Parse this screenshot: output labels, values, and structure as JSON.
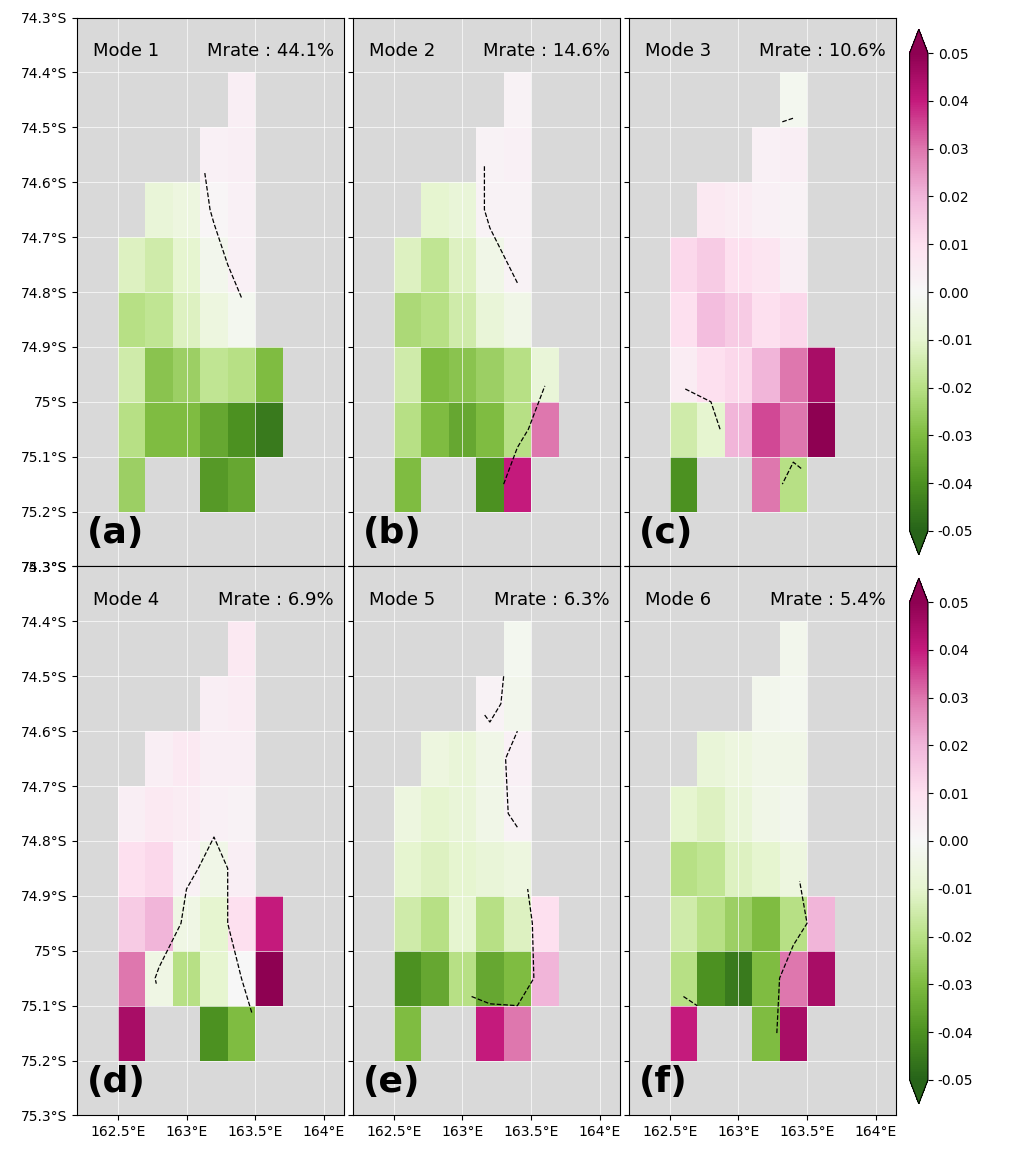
{
  "chart_data": [
    {
      "type": "heatmap",
      "title": "Mode 1",
      "subtitle": "Mrate : 44.1%",
      "panel_label": "(a)",
      "tick_labels": "y",
      "grid": true,
      "x": [
        162.6,
        162.8,
        163.0,
        163.2,
        163.4,
        163.6
      ],
      "y": [
        -74.45,
        -74.55,
        -74.65,
        -74.75,
        -74.85,
        -74.95,
        -75.05,
        -75.15
      ],
      "cells": [
        [
          null,
          null,
          null,
          null,
          0.004,
          null
        ],
        [
          null,
          null,
          null,
          0.003,
          0.004,
          null
        ],
        [
          null,
          -0.008,
          -0.006,
          0.001,
          0.003,
          null
        ],
        [
          -0.012,
          -0.015,
          -0.01,
          -0.003,
          0.003,
          null
        ],
        [
          -0.02,
          -0.018,
          -0.012,
          -0.006,
          -0.002,
          null
        ],
        [
          -0.015,
          -0.028,
          -0.025,
          -0.018,
          -0.02,
          -0.03
        ],
        [
          -0.02,
          -0.03,
          -0.03,
          -0.035,
          -0.04,
          -0.045
        ],
        [
          -0.025,
          null,
          null,
          -0.038,
          -0.035,
          null
        ]
      ],
      "contour_level": 0,
      "xlim": [
        162.2,
        164.15
      ],
      "ylim": [
        -75.3,
        -74.3
      ],
      "xticks": [
        {
          "value": 162.5,
          "label": "162.5°E"
        },
        {
          "value": 163,
          "label": "163°E"
        },
        {
          "value": 163.5,
          "label": "163.5°E"
        },
        {
          "value": 164,
          "label": "164°E"
        }
      ],
      "yticks": [
        {
          "value": -74.3,
          "label": "74.3°S"
        },
        {
          "value": -74.4,
          "label": "74.4°S"
        },
        {
          "value": -74.5,
          "label": "74.5°S"
        },
        {
          "value": -74.6,
          "label": "74.6°S"
        },
        {
          "value": -74.7,
          "label": "74.7°S"
        },
        {
          "value": -74.8,
          "label": "74.8°S"
        },
        {
          "value": -74.9,
          "label": "74.9°S"
        },
        {
          "value": -75,
          "label": "75°S"
        },
        {
          "value": -75.1,
          "label": "75.1°S"
        },
        {
          "value": -75.2,
          "label": "75.2°S"
        },
        {
          "value": -75.3,
          "label": "75.3°S"
        }
      ],
      "colorbar_range": [
        -0.05,
        0.05
      ]
    },
    {
      "type": "heatmap",
      "title": "Mode 2",
      "subtitle": "Mrate : 14.6%",
      "panel_label": "(b)",
      "tick_labels": false,
      "grid": true,
      "x": [
        162.6,
        162.8,
        163.0,
        163.2,
        163.4,
        163.6
      ],
      "y": [
        -74.45,
        -74.55,
        -74.65,
        -74.75,
        -74.85,
        -74.95,
        -75.05,
        -75.15
      ],
      "cells": [
        [
          null,
          null,
          null,
          null,
          0.002,
          null
        ],
        [
          null,
          null,
          null,
          0.002,
          0.003,
          null
        ],
        [
          null,
          -0.01,
          -0.008,
          0.002,
          0.002,
          null
        ],
        [
          -0.012,
          -0.018,
          -0.012,
          -0.004,
          0.002,
          null
        ],
        [
          -0.022,
          -0.02,
          -0.015,
          -0.008,
          -0.004,
          null
        ],
        [
          -0.015,
          -0.03,
          -0.028,
          -0.025,
          -0.02,
          -0.008
        ],
        [
          -0.02,
          -0.03,
          -0.035,
          -0.03,
          -0.02,
          0.03
        ],
        [
          -0.03,
          null,
          null,
          -0.04,
          0.04,
          null
        ]
      ],
      "contour_level": 0,
      "xlim": [
        162.2,
        164.15
      ],
      "ylim": [
        -75.3,
        -74.3
      ],
      "xticks": [
        {
          "value": 162.5,
          "label": "162.5°E"
        },
        {
          "value": 163,
          "label": "163°E"
        },
        {
          "value": 163.5,
          "label": "163.5°E"
        },
        {
          "value": 164,
          "label": "164°E"
        }
      ],
      "yticks": [
        {
          "value": -74.3,
          "label": "74.3°S"
        },
        {
          "value": -74.4,
          "label": "74.4°S"
        },
        {
          "value": -74.5,
          "label": "74.5°S"
        },
        {
          "value": -74.6,
          "label": "74.6°S"
        },
        {
          "value": -74.7,
          "label": "74.7°S"
        },
        {
          "value": -74.8,
          "label": "74.8°S"
        },
        {
          "value": -74.9,
          "label": "74.9°S"
        },
        {
          "value": -75,
          "label": "75°S"
        },
        {
          "value": -75.1,
          "label": "75.1°S"
        },
        {
          "value": -75.2,
          "label": "75.2°S"
        },
        {
          "value": -75.3,
          "label": "75.3°S"
        }
      ],
      "colorbar_range": [
        -0.05,
        0.05
      ]
    },
    {
      "type": "heatmap",
      "title": "Mode 3",
      "subtitle": "Mrate : 10.6%",
      "panel_label": "(c)",
      "tick_labels": false,
      "grid": true,
      "x": [
        162.6,
        162.8,
        163.0,
        163.2,
        163.4,
        163.6
      ],
      "y": [
        -74.45,
        -74.55,
        -74.65,
        -74.75,
        -74.85,
        -74.95,
        -75.05,
        -75.15
      ],
      "cells": [
        [
          null,
          null,
          null,
          null,
          -0.002,
          null
        ],
        [
          null,
          null,
          null,
          0.003,
          0.004,
          null
        ],
        [
          null,
          0.006,
          0.005,
          0.003,
          0.002,
          null
        ],
        [
          0.012,
          0.015,
          0.01,
          0.008,
          0.004,
          null
        ],
        [
          0.01,
          0.018,
          0.015,
          0.01,
          0.012,
          null
        ],
        [
          0.005,
          0.01,
          0.012,
          0.02,
          0.03,
          0.045
        ],
        [
          -0.015,
          -0.01,
          0.02,
          0.035,
          0.03,
          0.05
        ],
        [
          -0.04,
          null,
          null,
          0.03,
          -0.02,
          null
        ]
      ],
      "contour_level": 0,
      "xlim": [
        162.2,
        164.15
      ],
      "ylim": [
        -75.3,
        -74.3
      ],
      "xticks": [
        {
          "value": 162.5,
          "label": "162.5°E"
        },
        {
          "value": 163,
          "label": "163°E"
        },
        {
          "value": 163.5,
          "label": "163.5°E"
        },
        {
          "value": 164,
          "label": "164°E"
        }
      ],
      "yticks": [
        {
          "value": -74.3,
          "label": "74.3°S"
        },
        {
          "value": -74.4,
          "label": "74.4°S"
        },
        {
          "value": -74.5,
          "label": "74.5°S"
        },
        {
          "value": -74.6,
          "label": "74.6°S"
        },
        {
          "value": -74.7,
          "label": "74.7°S"
        },
        {
          "value": -74.8,
          "label": "74.8°S"
        },
        {
          "value": -74.9,
          "label": "74.9°S"
        },
        {
          "value": -75,
          "label": "75°S"
        },
        {
          "value": -75.1,
          "label": "75.1°S"
        },
        {
          "value": -75.2,
          "label": "75.2°S"
        },
        {
          "value": -75.3,
          "label": "75.3°S"
        }
      ],
      "colorbar_range": [
        -0.05,
        0.05
      ],
      "colorbar_ticks": [
        -0.05,
        -0.04,
        -0.03,
        -0.02,
        -0.01,
        {
          "value": 0,
          "label": "0.00"
        },
        0.01,
        0.02,
        0.03,
        0.04,
        0.05
      ]
    },
    {
      "type": "heatmap",
      "title": "Mode 4",
      "subtitle": "Mrate : 6.9%",
      "panel_label": "(d)",
      "grid": true,
      "x": [
        162.6,
        162.8,
        163.0,
        163.2,
        163.4,
        163.6
      ],
      "y": [
        -74.45,
        -74.55,
        -74.65,
        -74.75,
        -74.85,
        -74.95,
        -75.05,
        -75.15
      ],
      "cells": [
        [
          null,
          null,
          null,
          null,
          0.006,
          null
        ],
        [
          null,
          null,
          null,
          0.004,
          0.005,
          null
        ],
        [
          null,
          0.004,
          0.006,
          0.004,
          0.004,
          null
        ],
        [
          0.004,
          0.006,
          0.005,
          0.003,
          0.002,
          null
        ],
        [
          0.01,
          0.012,
          0.003,
          -0.004,
          0.004,
          null
        ],
        [
          0.015,
          0.02,
          -0.005,
          -0.01,
          0.01,
          0.04
        ],
        [
          0.03,
          -0.005,
          -0.02,
          -0.01,
          0.0,
          0.05
        ],
        [
          0.045,
          null,
          null,
          -0.04,
          -0.03,
          null
        ]
      ],
      "contour_level": 0,
      "xlim": [
        162.2,
        164.15
      ],
      "ylim": [
        -75.3,
        -74.3
      ],
      "xticks": [
        {
          "value": 162.5,
          "label": "162.5°E"
        },
        {
          "value": 163,
          "label": "163°E"
        },
        {
          "value": 163.5,
          "label": "163.5°E"
        },
        {
          "value": 164,
          "label": "164°E"
        }
      ],
      "yticks": [
        {
          "value": -74.3,
          "label": "74.3°S"
        },
        {
          "value": -74.4,
          "label": "74.4°S"
        },
        {
          "value": -74.5,
          "label": "74.5°S"
        },
        {
          "value": -74.6,
          "label": "74.6°S"
        },
        {
          "value": -74.7,
          "label": "74.7°S"
        },
        {
          "value": -74.8,
          "label": "74.8°S"
        },
        {
          "value": -74.9,
          "label": "74.9°S"
        },
        {
          "value": -75,
          "label": "75°S"
        },
        {
          "value": -75.1,
          "label": "75.1°S"
        },
        {
          "value": -75.2,
          "label": "75.2°S"
        },
        {
          "value": -75.3,
          "label": "75.3°S"
        }
      ],
      "colorbar_range": [
        -0.05,
        0.05
      ]
    },
    {
      "type": "heatmap",
      "title": "Mode 5",
      "subtitle": "Mrate : 6.3%",
      "panel_label": "(e)",
      "tick_labels": "x",
      "grid": true,
      "x": [
        162.6,
        162.8,
        163.0,
        163.2,
        163.4,
        163.6
      ],
      "y": [
        -74.45,
        -74.55,
        -74.65,
        -74.75,
        -74.85,
        -74.95,
        -75.05,
        -75.15
      ],
      "cells": [
        [
          null,
          null,
          null,
          null,
          -0.002,
          null
        ],
        [
          null,
          null,
          null,
          0.002,
          -0.003,
          null
        ],
        [
          null,
          -0.006,
          -0.008,
          -0.004,
          0.003,
          null
        ],
        [
          -0.006,
          -0.01,
          -0.008,
          -0.004,
          0.002,
          null
        ],
        [
          -0.01,
          -0.012,
          -0.01,
          -0.008,
          -0.006,
          null
        ],
        [
          -0.015,
          -0.02,
          -0.01,
          -0.02,
          -0.012,
          0.01
        ],
        [
          -0.04,
          -0.035,
          -0.02,
          -0.035,
          -0.03,
          0.02
        ],
        [
          -0.03,
          null,
          null,
          0.04,
          0.03,
          null
        ]
      ],
      "contour_level": 0,
      "xlim": [
        162.2,
        164.15
      ],
      "ylim": [
        -75.3,
        -74.3
      ],
      "xticks": [
        {
          "value": 162.5,
          "label": "162.5°E"
        },
        {
          "value": 163,
          "label": "163°E"
        },
        {
          "value": 163.5,
          "label": "163.5°E"
        },
        {
          "value": 164,
          "label": "164°E"
        }
      ],
      "yticks": [
        {
          "value": -74.3,
          "label": "74.3°S"
        },
        {
          "value": -74.4,
          "label": "74.4°S"
        },
        {
          "value": -74.5,
          "label": "74.5°S"
        },
        {
          "value": -74.6,
          "label": "74.6°S"
        },
        {
          "value": -74.7,
          "label": "74.7°S"
        },
        {
          "value": -74.8,
          "label": "74.8°S"
        },
        {
          "value": -74.9,
          "label": "74.9°S"
        },
        {
          "value": -75,
          "label": "75°S"
        },
        {
          "value": -75.1,
          "label": "75.1°S"
        },
        {
          "value": -75.2,
          "label": "75.2°S"
        },
        {
          "value": -75.3,
          "label": "75.3°S"
        }
      ],
      "colorbar_range": [
        -0.05,
        0.05
      ]
    },
    {
      "type": "heatmap",
      "title": "Mode 6",
      "subtitle": "Mrate : 5.4%",
      "panel_label": "(f)",
      "tick_labels": "x",
      "grid": true,
      "x": [
        162.6,
        162.8,
        163.0,
        163.2,
        163.4,
        163.6
      ],
      "y": [
        -74.45,
        -74.55,
        -74.65,
        -74.75,
        -74.85,
        -74.95,
        -75.05,
        -75.15
      ],
      "cells": [
        [
          null,
          null,
          null,
          null,
          -0.003,
          null
        ],
        [
          null,
          null,
          null,
          -0.003,
          -0.002,
          null
        ],
        [
          null,
          -0.008,
          -0.006,
          -0.004,
          -0.004,
          null
        ],
        [
          -0.01,
          -0.012,
          -0.008,
          -0.004,
          -0.003,
          null
        ],
        [
          -0.02,
          -0.018,
          -0.012,
          -0.01,
          -0.006,
          null
        ],
        [
          -0.015,
          -0.02,
          -0.025,
          -0.03,
          -0.02,
          0.02
        ],
        [
          -0.02,
          -0.04,
          -0.045,
          -0.03,
          0.03,
          0.045
        ],
        [
          0.04,
          null,
          null,
          -0.03,
          0.045,
          null
        ]
      ],
      "contour_level": 0,
      "xlim": [
        162.2,
        164.15
      ],
      "ylim": [
        -75.3,
        -74.3
      ],
      "xticks": [
        {
          "value": 162.5,
          "label": "162.5°E"
        },
        {
          "value": 163,
          "label": "163°E"
        },
        {
          "value": 163.5,
          "label": "163.5°E"
        },
        {
          "value": 164,
          "label": "164°E"
        }
      ],
      "yticks": [
        {
          "value": -74.3,
          "label": "74.3°S"
        },
        {
          "value": -74.4,
          "label": "74.4°S"
        },
        {
          "value": -74.5,
          "label": "74.5°S"
        },
        {
          "value": -74.6,
          "label": "74.6°S"
        },
        {
          "value": -74.7,
          "label": "74.7°S"
        },
        {
          "value": -74.8,
          "label": "74.8°S"
        },
        {
          "value": -74.9,
          "label": "74.9°S"
        },
        {
          "value": -75,
          "label": "75°S"
        },
        {
          "value": -75.1,
          "label": "75.1°S"
        },
        {
          "value": -75.2,
          "label": "75.2°S"
        },
        {
          "value": -75.3,
          "label": "75.3°S"
        }
      ],
      "colorbar_range": [
        -0.05,
        0.05
      ],
      "colorbar_ticks": [
        -0.05,
        -0.04,
        -0.03,
        -0.02,
        -0.01,
        {
          "value": 0,
          "label": "0.00"
        },
        0.01,
        0.02,
        0.03,
        0.04,
        0.05
      ]
    }
  ]
}
